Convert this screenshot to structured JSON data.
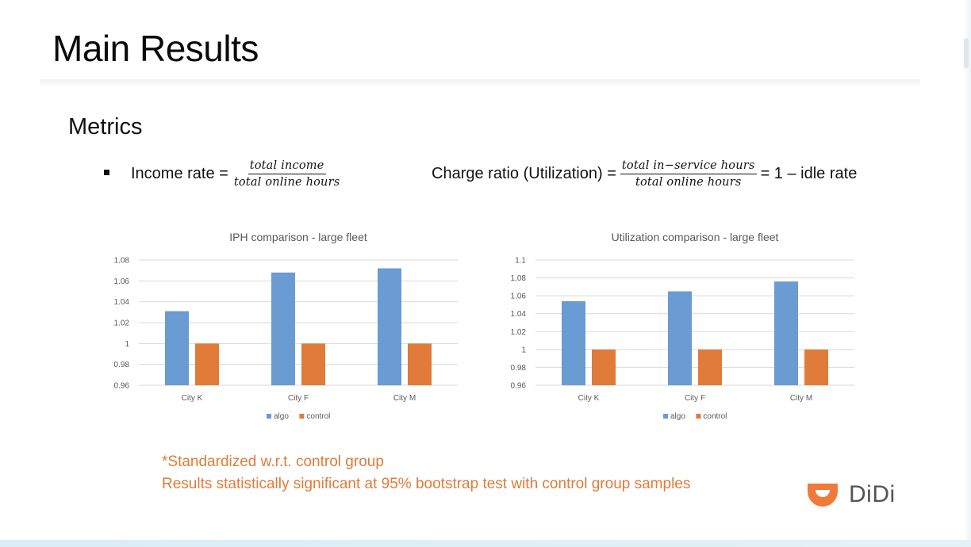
{
  "slide": {
    "title": "Main Results",
    "metrics_heading": "Metrics",
    "formula1": {
      "lhs": "Income rate =",
      "numerator": "total income",
      "denominator": "total online hours"
    },
    "formula2": {
      "lhs": "Charge ratio (Utilization) =",
      "numerator": "total in−service hours",
      "denominator": "total online hours",
      "rhs": "= 1 – idle rate"
    },
    "note_line1": "*Standardized w.r.t. control group",
    "note_line2": "Results statistically significant at 95% bootstrap test with control group samples",
    "logo_text": "DiDi",
    "logo_icon": "didi-logo-icon"
  },
  "colors": {
    "algo": "#6A9BD3",
    "control": "#E07B39",
    "note": "#E07B39",
    "logo": "#F07A3A",
    "grid": "#D9D9D9"
  },
  "chart_data": [
    {
      "type": "bar",
      "title": "IPH comparison - large fleet",
      "categories": [
        "City K",
        "City F",
        "City M"
      ],
      "series": [
        {
          "name": "algo",
          "values": [
            1.031,
            1.068,
            1.072
          ]
        },
        {
          "name": "control",
          "values": [
            1.0,
            1.0,
            1.0
          ]
        }
      ],
      "ylim": [
        0.96,
        1.08
      ],
      "yticks": [
        "0.96",
        "0.98",
        "1",
        "1.02",
        "1.04",
        "1.06",
        "1.08"
      ],
      "grid": true,
      "legend": "bottom"
    },
    {
      "type": "bar",
      "title": "Utilization comparison - large fleet",
      "categories": [
        "City K",
        "City F",
        "City M"
      ],
      "series": [
        {
          "name": "algo",
          "values": [
            1.054,
            1.065,
            1.076
          ]
        },
        {
          "name": "control",
          "values": [
            1.0,
            1.0,
            1.0
          ]
        }
      ],
      "ylim": [
        0.96,
        1.1
      ],
      "yticks": [
        "0.96",
        "0.98",
        "1",
        "1.02",
        "1.04",
        "1.06",
        "1.08",
        "1.1"
      ],
      "grid": true,
      "legend": "bottom"
    }
  ]
}
